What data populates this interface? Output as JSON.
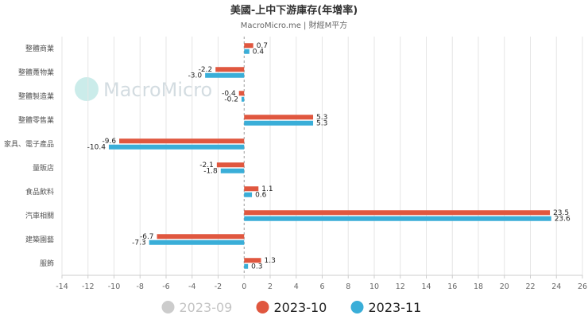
{
  "chart_data": {
    "type": "bar",
    "orientation": "horizontal",
    "title": "美國-上中下游庫存(年增率)",
    "subtitle": "MacroMicro.me | 財經M平方",
    "watermark": "MacroMicro",
    "categories": [
      "整體商業",
      "整體躉物業",
      "整體製造業",
      "整體零售業",
      "家具、電子產品",
      "量販店",
      "食品飲料",
      "汽車相關",
      "建築園藝",
      "服飾"
    ],
    "series": [
      {
        "name": "2023-09",
        "color": "#cccccc",
        "values": [
          null,
          null,
          null,
          null,
          null,
          null,
          null,
          null,
          null,
          null
        ],
        "legend_muted": true
      },
      {
        "name": "2023-10",
        "color": "#e0573f",
        "values": [
          0.7,
          -2.2,
          -0.4,
          5.3,
          -9.6,
          -2.1,
          1.1,
          23.5,
          -6.7,
          1.3
        ]
      },
      {
        "name": "2023-11",
        "color": "#3aaed8",
        "values": [
          0.4,
          -3.0,
          -0.2,
          5.3,
          -10.4,
          -1.8,
          0.6,
          23.6,
          -7.3,
          0.3
        ]
      }
    ],
    "xlim": [
      -14,
      26
    ],
    "xticks": [
      -14,
      -12,
      -10,
      -8,
      -6,
      -4,
      -2,
      0,
      2,
      4,
      6,
      8,
      10,
      12,
      14,
      16,
      18,
      20,
      22,
      24,
      26
    ],
    "grid": "vertical",
    "legend": "bottom-center"
  }
}
